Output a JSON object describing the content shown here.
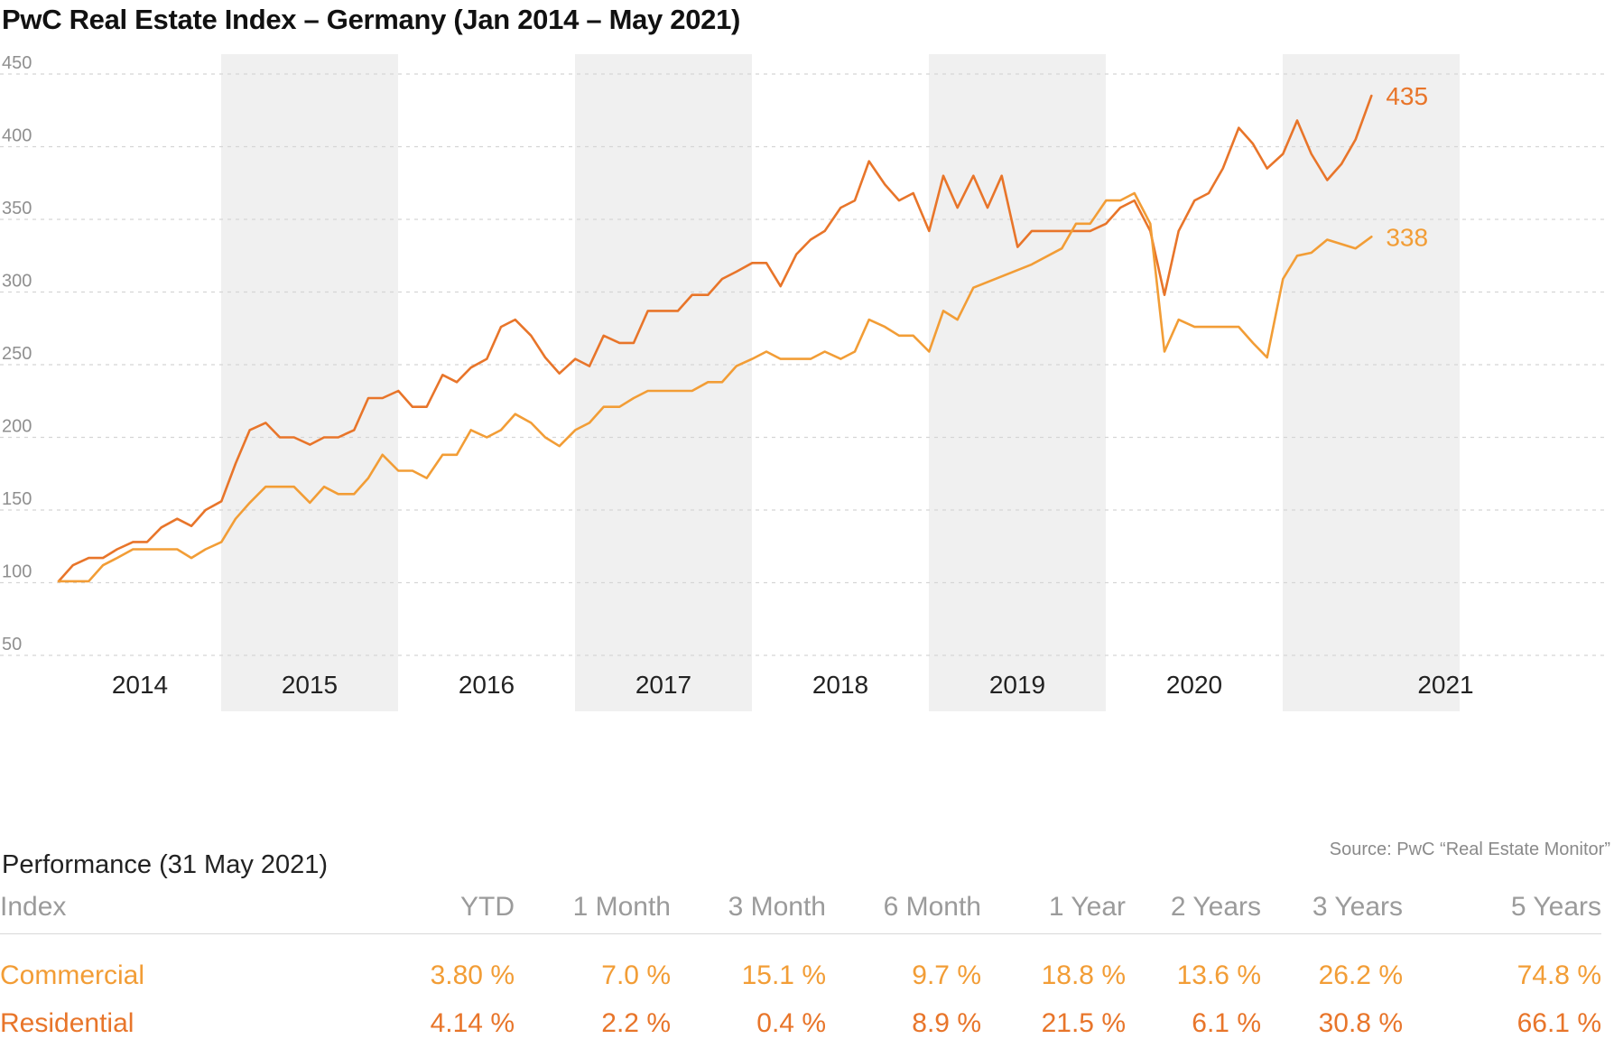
{
  "title": "PwC Real Estate Index – Germany (Jan 2014 – May 2021)",
  "source": "Source: PwC “Real Estate Monitor”",
  "colors": {
    "commercial": "#f29d36",
    "residential": "#e8752a",
    "year_band": "#f0f0f0",
    "grid": "#d5d5d5",
    "tick": "#8f8f8f"
  },
  "chart_data": {
    "type": "line",
    "ylim": [
      50,
      450
    ],
    "yticks": [
      50,
      100,
      150,
      200,
      250,
      300,
      350,
      400,
      450
    ],
    "xlim": [
      2014.0,
      2021.58
    ],
    "year_labels": [
      "2014",
      "2015",
      "2016",
      "2017",
      "2018",
      "2019",
      "2020",
      "2021"
    ],
    "shaded_years": [
      "2015",
      "2017",
      "2019",
      "2021"
    ],
    "grid": "horizontal dashed",
    "series": [
      {
        "name": "Residential",
        "end_label": "435",
        "points": [
          [
            2014.0,
            101
          ],
          [
            2014.08,
            112
          ],
          [
            2014.17,
            117
          ],
          [
            2014.25,
            117
          ],
          [
            2014.33,
            123
          ],
          [
            2014.42,
            128
          ],
          [
            2014.5,
            128
          ],
          [
            2014.58,
            138
          ],
          [
            2014.67,
            144
          ],
          [
            2014.75,
            139
          ],
          [
            2014.83,
            150
          ],
          [
            2014.92,
            156
          ],
          [
            2015.0,
            182
          ],
          [
            2015.08,
            205
          ],
          [
            2015.17,
            210
          ],
          [
            2015.25,
            200
          ],
          [
            2015.33,
            200
          ],
          [
            2015.42,
            195
          ],
          [
            2015.5,
            200
          ],
          [
            2015.58,
            200
          ],
          [
            2015.67,
            205
          ],
          [
            2015.75,
            227
          ],
          [
            2015.83,
            227
          ],
          [
            2015.92,
            232
          ],
          [
            2016.0,
            221
          ],
          [
            2016.08,
            221
          ],
          [
            2016.17,
            243
          ],
          [
            2016.25,
            238
          ],
          [
            2016.33,
            248
          ],
          [
            2016.42,
            254
          ],
          [
            2016.5,
            276
          ],
          [
            2016.58,
            281
          ],
          [
            2016.67,
            270
          ],
          [
            2016.75,
            255
          ],
          [
            2016.83,
            244
          ],
          [
            2016.92,
            254
          ],
          [
            2017.0,
            249
          ],
          [
            2017.08,
            270
          ],
          [
            2017.17,
            265
          ],
          [
            2017.25,
            265
          ],
          [
            2017.33,
            287
          ],
          [
            2017.42,
            287
          ],
          [
            2017.5,
            287
          ],
          [
            2017.58,
            298
          ],
          [
            2017.67,
            298
          ],
          [
            2017.75,
            309
          ],
          [
            2017.83,
            314
          ],
          [
            2017.92,
            320
          ],
          [
            2018.0,
            320
          ],
          [
            2018.08,
            304
          ],
          [
            2018.17,
            326
          ],
          [
            2018.25,
            336
          ],
          [
            2018.33,
            342
          ],
          [
            2018.42,
            358
          ],
          [
            2018.5,
            363
          ],
          [
            2018.58,
            390
          ],
          [
            2018.67,
            374
          ],
          [
            2018.75,
            363
          ],
          [
            2018.83,
            368
          ],
          [
            2018.92,
            342
          ],
          [
            2019.0,
            380
          ],
          [
            2019.08,
            358
          ],
          [
            2019.17,
            380
          ],
          [
            2019.25,
            358
          ],
          [
            2019.33,
            380
          ],
          [
            2019.42,
            331
          ],
          [
            2019.5,
            342
          ],
          [
            2019.58,
            342
          ],
          [
            2019.67,
            342
          ],
          [
            2019.75,
            342
          ],
          [
            2019.83,
            342
          ],
          [
            2019.92,
            347
          ],
          [
            2020.0,
            358
          ],
          [
            2020.08,
            363
          ],
          [
            2020.17,
            342
          ],
          [
            2020.25,
            298
          ],
          [
            2020.33,
            342
          ],
          [
            2020.42,
            363
          ],
          [
            2020.5,
            368
          ],
          [
            2020.58,
            385
          ],
          [
            2020.67,
            413
          ],
          [
            2020.75,
            402
          ],
          [
            2020.83,
            385
          ],
          [
            2020.92,
            395
          ],
          [
            2021.0,
            418
          ],
          [
            2021.08,
            395
          ],
          [
            2021.17,
            377
          ],
          [
            2021.25,
            388
          ],
          [
            2021.33,
            405
          ],
          [
            2021.42,
            435
          ]
        ]
      },
      {
        "name": "Commercial",
        "end_label": "338",
        "points": [
          [
            2014.0,
            101
          ],
          [
            2014.08,
            101
          ],
          [
            2014.17,
            101
          ],
          [
            2014.25,
            112
          ],
          [
            2014.33,
            117
          ],
          [
            2014.42,
            123
          ],
          [
            2014.5,
            123
          ],
          [
            2014.58,
            123
          ],
          [
            2014.67,
            123
          ],
          [
            2014.75,
            117
          ],
          [
            2014.83,
            123
          ],
          [
            2014.92,
            128
          ],
          [
            2015.0,
            144
          ],
          [
            2015.08,
            155
          ],
          [
            2015.17,
            166
          ],
          [
            2015.25,
            166
          ],
          [
            2015.33,
            166
          ],
          [
            2015.42,
            155
          ],
          [
            2015.5,
            166
          ],
          [
            2015.58,
            161
          ],
          [
            2015.67,
            161
          ],
          [
            2015.75,
            172
          ],
          [
            2015.83,
            188
          ],
          [
            2015.92,
            177
          ],
          [
            2016.0,
            177
          ],
          [
            2016.08,
            172
          ],
          [
            2016.17,
            188
          ],
          [
            2016.25,
            188
          ],
          [
            2016.33,
            205
          ],
          [
            2016.42,
            200
          ],
          [
            2016.5,
            205
          ],
          [
            2016.58,
            216
          ],
          [
            2016.67,
            210
          ],
          [
            2016.75,
            200
          ],
          [
            2016.83,
            194
          ],
          [
            2016.92,
            205
          ],
          [
            2017.0,
            210
          ],
          [
            2017.08,
            221
          ],
          [
            2017.17,
            221
          ],
          [
            2017.25,
            227
          ],
          [
            2017.33,
            232
          ],
          [
            2017.42,
            232
          ],
          [
            2017.5,
            232
          ],
          [
            2017.58,
            232
          ],
          [
            2017.67,
            238
          ],
          [
            2017.75,
            238
          ],
          [
            2017.83,
            249
          ],
          [
            2017.92,
            254
          ],
          [
            2018.0,
            259
          ],
          [
            2018.08,
            254
          ],
          [
            2018.17,
            254
          ],
          [
            2018.25,
            254
          ],
          [
            2018.33,
            259
          ],
          [
            2018.42,
            254
          ],
          [
            2018.5,
            259
          ],
          [
            2018.58,
            281
          ],
          [
            2018.67,
            276
          ],
          [
            2018.75,
            270
          ],
          [
            2018.83,
            270
          ],
          [
            2018.92,
            259
          ],
          [
            2019.0,
            287
          ],
          [
            2019.08,
            281
          ],
          [
            2019.17,
            303
          ],
          [
            2019.5,
            319
          ],
          [
            2019.67,
            330
          ],
          [
            2019.75,
            347
          ],
          [
            2019.83,
            347
          ],
          [
            2019.92,
            363
          ],
          [
            2020.0,
            363
          ],
          [
            2020.08,
            368
          ],
          [
            2020.17,
            347
          ],
          [
            2020.25,
            259
          ],
          [
            2020.33,
            281
          ],
          [
            2020.42,
            276
          ],
          [
            2020.5,
            276
          ],
          [
            2020.58,
            276
          ],
          [
            2020.67,
            276
          ],
          [
            2020.75,
            265
          ],
          [
            2020.83,
            255
          ],
          [
            2020.92,
            309
          ],
          [
            2021.0,
            325
          ],
          [
            2021.08,
            327
          ],
          [
            2021.17,
            336
          ],
          [
            2021.25,
            333
          ],
          [
            2021.33,
            330
          ],
          [
            2021.42,
            338
          ]
        ]
      }
    ]
  },
  "performance": {
    "title": "Performance (31 May 2021)",
    "columns": [
      "Index",
      "YTD",
      "1 Month",
      "3 Month",
      "6 Month",
      "1 Year",
      "2 Years",
      "3 Years",
      "5 Years"
    ],
    "rows": [
      {
        "name": "Commercial",
        "values": [
          "3.80 %",
          "7.0 %",
          "15.1 %",
          "9.7 %",
          "18.8 %",
          "13.6 %",
          "26.2 %",
          "74.8 %"
        ]
      },
      {
        "name": "Residential",
        "values": [
          "4.14 %",
          "2.2 %",
          "0.4 %",
          "8.9 %",
          "21.5 %",
          "6.1 %",
          "30.8 %",
          "66.1 %"
        ]
      }
    ]
  }
}
